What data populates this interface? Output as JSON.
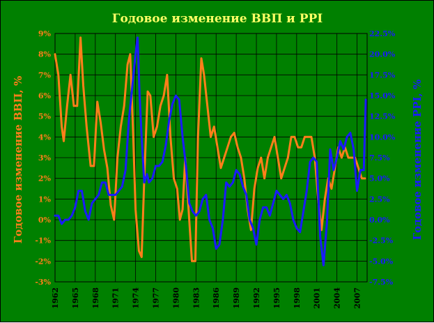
{
  "chart_data": {
    "type": "line",
    "title": "Годовое изменение ВВП и PPI",
    "ylabel_left": "Годовое изменение ВВП, %",
    "ylabel_right": "Годовое изменение PPI, %",
    "ylim_left": [
      -3,
      9
    ],
    "ylim_right": [
      -7.5,
      22.5
    ],
    "xlim": [
      1962,
      2008.5
    ],
    "grid": true,
    "x_tick_labels": [
      "1962",
      "1965",
      "1968",
      "1971",
      "1974",
      "1977",
      "1980",
      "1983",
      "1986",
      "1989",
      "1992",
      "1995",
      "1998",
      "2001",
      "2004",
      "2007"
    ],
    "y_left_tick_labels": [
      "9%",
      "8%",
      "7%",
      "6%",
      "5%",
      "4%",
      "3%",
      "2%",
      "1%",
      "0%",
      "-1%",
      "-2%",
      "-3%"
    ],
    "y_right_tick_labels": [
      "22.5%",
      "20.0%",
      "17.5%",
      "15.0%",
      "12.5%",
      "10.0%",
      "7.5%",
      "5.0%",
      "2.5%",
      "0.0%",
      "-2.5%",
      "-5.0%",
      "-7.5%"
    ],
    "series": [
      {
        "name": "ВВП",
        "color": "#ff7f1a",
        "axis": "left",
        "x": [
          1962,
          1962.5,
          1963,
          1963.3,
          1963.8,
          1964.3,
          1964.8,
          1965.3,
          1965.8,
          1966.2,
          1966.7,
          1967.3,
          1967.8,
          1968.3,
          1968.8,
          1969.3,
          1969.8,
          1970.3,
          1970.8,
          1971.3,
          1971.8,
          1972.3,
          1972.8,
          1973.2,
          1973.6,
          1974.0,
          1974.5,
          1974.9,
          1975.3,
          1975.8,
          1976.2,
          1976.7,
          1977.2,
          1977.7,
          1978.2,
          1978.7,
          1979.2,
          1979.7,
          1980.2,
          1980.6,
          1981.0,
          1981.4,
          1981.9,
          1982.4,
          1982.9,
          1983.3,
          1983.8,
          1984.2,
          1984.7,
          1985.2,
          1985.7,
          1986.2,
          1986.7,
          1987.2,
          1987.7,
          1988.2,
          1988.7,
          1989.2,
          1989.7,
          1990.2,
          1990.7,
          1991.2,
          1991.7,
          1992.2,
          1992.7,
          1993.2,
          1993.7,
          1994.2,
          1994.7,
          1995.2,
          1995.7,
          1996.2,
          1996.7,
          1997.2,
          1997.7,
          1998.2,
          1998.7,
          1999.2,
          1999.7,
          2000.2,
          2000.7,
          2001.2,
          2001.7,
          2002.2,
          2002.7,
          2003.2,
          2003.7,
          2004.2,
          2004.7,
          2005.2,
          2005.7,
          2006.2,
          2006.7,
          2007.2,
          2007.7,
          2008.2
        ],
        "y": [
          8.0,
          7.0,
          4.5,
          3.8,
          5.5,
          7.0,
          5.5,
          5.5,
          8.8,
          6.5,
          4.5,
          2.6,
          2.6,
          5.7,
          4.7,
          3.4,
          2.5,
          0.7,
          0.0,
          3.0,
          4.5,
          5.5,
          7.5,
          8.0,
          4.5,
          0.5,
          -1.5,
          -1.8,
          2.0,
          6.2,
          6.0,
          4.0,
          4.5,
          5.5,
          6.0,
          7.0,
          4.0,
          2.0,
          1.5,
          0.0,
          0.5,
          3.0,
          0.5,
          -2.0,
          -2.0,
          4.0,
          7.8,
          7.0,
          5.5,
          4.0,
          4.5,
          3.5,
          2.5,
          3.0,
          3.5,
          4.0,
          4.2,
          3.5,
          3.0,
          2.0,
          0.5,
          -0.5,
          1.5,
          2.5,
          3.0,
          2.0,
          3.0,
          3.5,
          4.0,
          3.0,
          2.0,
          2.5,
          3.0,
          4.0,
          4.0,
          3.5,
          3.5,
          4.0,
          4.0,
          4.0,
          3.0,
          1.0,
          -0.5,
          1.0,
          2.0,
          1.5,
          2.5,
          3.5,
          3.0,
          3.5,
          3.0,
          3.0,
          3.0,
          2.5,
          2.0,
          2.0
        ]
      },
      {
        "name": "PPI",
        "color": "#1a1aff",
        "axis": "right",
        "x": [
          1962,
          1962.5,
          1963,
          1963.5,
          1964,
          1964.5,
          1965,
          1965.5,
          1966,
          1966.5,
          1967,
          1967.5,
          1968,
          1968.5,
          1969,
          1969.5,
          1970,
          1970.5,
          1971,
          1971.5,
          1972,
          1972.5,
          1973,
          1973.5,
          1974,
          1974.3,
          1974.6,
          1974.9,
          1975.3,
          1975.7,
          1976,
          1976.5,
          1977,
          1977.5,
          1978,
          1978.5,
          1979,
          1979.5,
          1980,
          1980.5,
          1981,
          1981.5,
          1982,
          1982.5,
          1983,
          1983.5,
          1984,
          1984.5,
          1985,
          1985.5,
          1986,
          1986.5,
          1987,
          1987.5,
          1988,
          1988.5,
          1989,
          1989.5,
          1990,
          1990.5,
          1991,
          1991.5,
          1992,
          1992.5,
          1993,
          1993.5,
          1994,
          1994.5,
          1995,
          1995.5,
          1996,
          1996.5,
          1997,
          1997.5,
          1998,
          1998.5,
          1999,
          1999.5,
          2000,
          2000.5,
          2001,
          2001.5,
          2002,
          2002.5,
          2003,
          2003.5,
          2004,
          2004.5,
          2005,
          2005.5,
          2006,
          2006.5,
          2007,
          2007.5,
          2008,
          2008.3
        ],
        "y": [
          0.5,
          0.5,
          -0.5,
          0.0,
          0.0,
          0.5,
          1.5,
          3.5,
          3.5,
          1.0,
          0.0,
          2.0,
          2.5,
          3.0,
          4.5,
          4.5,
          3.0,
          3.0,
          3.0,
          3.5,
          4.0,
          6.0,
          12.0,
          16.0,
          20.0,
          22.0,
          15.0,
          10.0,
          4.5,
          5.5,
          4.5,
          5.0,
          6.5,
          6.5,
          7.0,
          9.0,
          12.0,
          14.0,
          15.0,
          14.5,
          10.0,
          6.5,
          2.0,
          1.0,
          0.5,
          1.0,
          2.5,
          3.0,
          0.0,
          -1.0,
          -3.5,
          -3.0,
          0.0,
          4.5,
          4.0,
          4.5,
          6.0,
          5.5,
          4.0,
          3.0,
          0.0,
          -1.0,
          -3.0,
          0.0,
          1.5,
          1.5,
          0.5,
          2.0,
          3.5,
          3.0,
          2.5,
          3.0,
          2.0,
          0.0,
          -1.0,
          -1.5,
          1.0,
          3.5,
          7.0,
          7.5,
          7.0,
          -2.0,
          -5.5,
          -0.5,
          8.5,
          6.0,
          7.5,
          9.5,
          8.5,
          10.0,
          10.5,
          8.5,
          3.5,
          6.0,
          6.0,
          14.5
        ]
      }
    ]
  }
}
